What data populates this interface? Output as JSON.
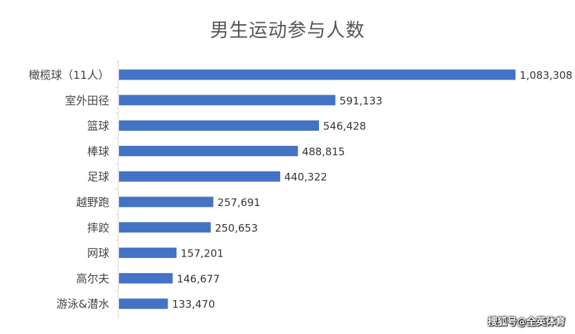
{
  "title": "男生运动参与人数",
  "watermark": "搜狐号@全英体育",
  "colors": {
    "bar": "#4472C4",
    "axis": "#d0d0d0",
    "label": "#444444",
    "value": "#333333"
  },
  "chart_data": {
    "type": "bar",
    "orientation": "horizontal",
    "title": "男生运动参与人数",
    "xlabel": "",
    "ylabel": "",
    "xlim": [
      0,
      1100000
    ],
    "grid": false,
    "legend": "none",
    "categories": [
      "橄榄球（11人）",
      "室外田径",
      "篮球",
      "棒球",
      "足球",
      "越野跑",
      "摔跤",
      "网球",
      "高尔夫",
      "游泳&潜水"
    ],
    "values": [
      1083308,
      591133,
      546428,
      488815,
      440322,
      257691,
      250653,
      157201,
      146677,
      133470
    ],
    "value_labels": [
      "1,083,308",
      "591,133",
      "546,428",
      "488,815",
      "440,322",
      "257,691",
      "250,653",
      "157,201",
      "146,677",
      "133,470"
    ]
  }
}
